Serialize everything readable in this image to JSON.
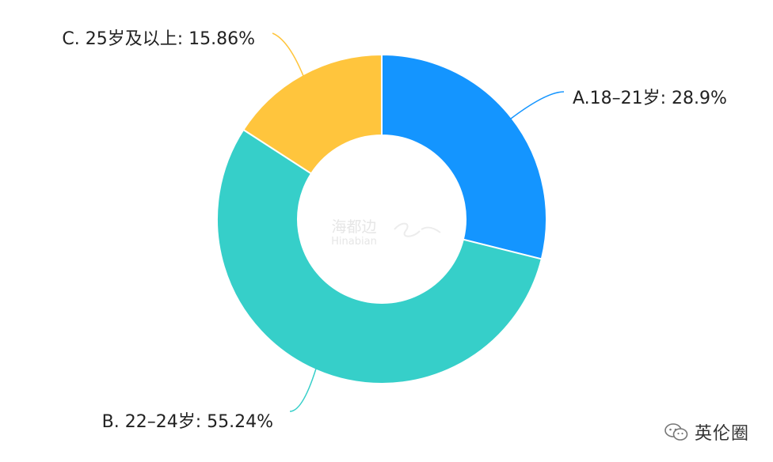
{
  "chart_data": {
    "type": "pie",
    "title": "",
    "categories": [
      "A.18–21岁",
      "B. 22–24岁",
      "C. 25岁及以上"
    ],
    "values": [
      28.9,
      55.24,
      15.86
    ],
    "value_unit": "%",
    "labels": [
      "A.18–21岁: 28.9%",
      "B. 22–24岁: 55.24%",
      "C. 25岁及以上: 15.86%"
    ],
    "colors": [
      "#1495FF",
      "#36CFC9",
      "#FFC53D"
    ],
    "donut": true,
    "start_angle_deg": 0,
    "direction": "clockwise",
    "legend": "none"
  },
  "watermark": {
    "text_cn": "海都边",
    "text_en": "Hinabian"
  },
  "brand": {
    "name": "英伦圈",
    "logo_icon": "wechat-logo-icon"
  }
}
